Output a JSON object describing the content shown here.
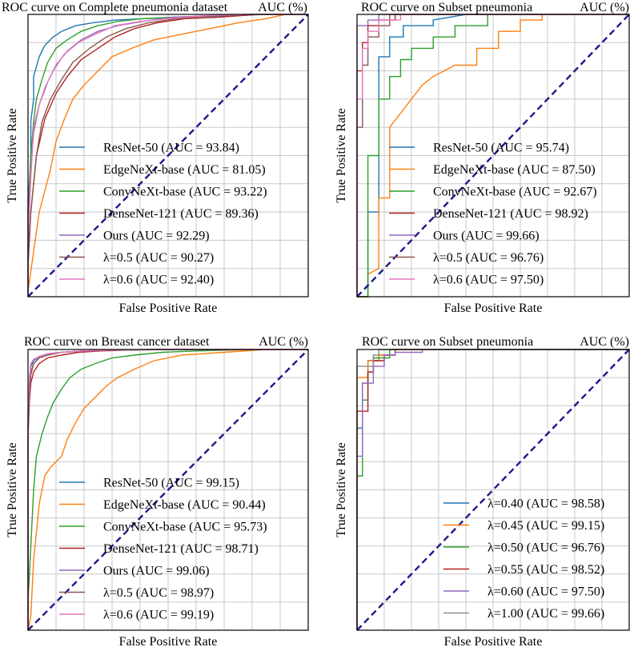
{
  "colors": {
    "blue": "#1f77b4",
    "orange": "#ff7f0e",
    "green": "#2ca02c",
    "red": "#b22222",
    "purple": "#9467bd",
    "brown": "#8c564b",
    "pink": "#e377c2",
    "gray": "#8c8c8c",
    "diag": "#1a1a8c"
  },
  "chart_data": [
    {
      "type": "line",
      "title": "ROC curve on Complete pneumonia dataset",
      "title_right": "AUC (%)",
      "xlabel": "False Positive Rate",
      "ylabel": "True Positive Rate",
      "xlim": [
        0,
        1
      ],
      "ylim": [
        0,
        1
      ],
      "grid": true,
      "diagonal": true,
      "series": [
        {
          "name": "ResNet-50 (AUC = 93.84)",
          "color": "blue",
          "x": [
            0,
            0,
            0.01,
            0.01,
            0.02,
            0.02,
            0.04,
            0.06,
            0.09,
            0.12,
            0.17,
            0.23,
            0.31,
            0.42,
            0.55,
            0.7,
            0.85,
            1
          ],
          "y": [
            0,
            0.35,
            0.45,
            0.62,
            0.7,
            0.78,
            0.85,
            0.89,
            0.92,
            0.94,
            0.96,
            0.97,
            0.98,
            0.985,
            0.99,
            0.995,
            1,
            1
          ]
        },
        {
          "name": "EdgeNeXt-base (AUC = 81.05)",
          "color": "orange",
          "x": [
            0,
            0,
            0.04,
            0.08,
            0.1,
            0.13,
            0.16,
            0.2,
            0.25,
            0.3,
            0.37,
            0.45,
            0.55,
            0.65,
            0.75,
            0.85,
            0.92,
            1
          ],
          "y": [
            0,
            0.02,
            0.3,
            0.45,
            0.55,
            0.63,
            0.7,
            0.75,
            0.8,
            0.85,
            0.88,
            0.91,
            0.93,
            0.95,
            0.97,
            0.985,
            1,
            1
          ]
        },
        {
          "name": "ConvNeXt-base (AUC = 93.22)",
          "color": "green",
          "x": [
            0,
            0,
            0.01,
            0.02,
            0.03,
            0.05,
            0.07,
            0.1,
            0.14,
            0.19,
            0.25,
            0.32,
            0.41,
            0.52,
            0.65,
            0.8,
            1
          ],
          "y": [
            0,
            0.3,
            0.5,
            0.62,
            0.7,
            0.77,
            0.83,
            0.88,
            0.91,
            0.94,
            0.96,
            0.975,
            0.985,
            0.99,
            0.995,
            1,
            1
          ]
        },
        {
          "name": "DenseNet-121 (AUC = 89.36)",
          "color": "red",
          "x": [
            0,
            0,
            0.01,
            0.03,
            0.06,
            0.1,
            0.14,
            0.19,
            0.25,
            0.31,
            0.38,
            0.46,
            0.56,
            0.68,
            0.82,
            1
          ],
          "y": [
            0,
            0.15,
            0.3,
            0.5,
            0.63,
            0.72,
            0.78,
            0.84,
            0.88,
            0.92,
            0.95,
            0.97,
            0.985,
            0.99,
            1,
            1
          ]
        },
        {
          "name": "Ours (AUC = 92.29)",
          "color": "purple",
          "x": [
            0,
            0,
            0.01,
            0.02,
            0.04,
            0.07,
            0.1,
            0.14,
            0.19,
            0.25,
            0.32,
            0.41,
            0.52,
            0.65,
            0.8,
            1
          ],
          "y": [
            0,
            0.25,
            0.45,
            0.58,
            0.68,
            0.76,
            0.82,
            0.87,
            0.91,
            0.94,
            0.96,
            0.975,
            0.99,
            0.995,
            1,
            1
          ]
        },
        {
          "name": "λ=0.5 (AUC = 90.27)",
          "color": "brown",
          "x": [
            0,
            0,
            0.01,
            0.03,
            0.05,
            0.08,
            0.12,
            0.16,
            0.22,
            0.28,
            0.35,
            0.43,
            0.53,
            0.65,
            0.8,
            1
          ],
          "y": [
            0,
            0.1,
            0.3,
            0.5,
            0.62,
            0.7,
            0.77,
            0.83,
            0.88,
            0.92,
            0.95,
            0.97,
            0.985,
            0.995,
            1,
            1
          ]
        },
        {
          "name": "λ=0.6 (AUC = 92.40)",
          "color": "pink",
          "x": [
            0,
            0,
            0.01,
            0.02,
            0.04,
            0.06,
            0.09,
            0.13,
            0.18,
            0.24,
            0.31,
            0.4,
            0.5,
            0.62,
            0.78,
            1
          ],
          "y": [
            0,
            0.2,
            0.42,
            0.6,
            0.68,
            0.74,
            0.8,
            0.86,
            0.9,
            0.93,
            0.96,
            0.975,
            0.985,
            0.995,
            1,
            1
          ]
        }
      ]
    },
    {
      "type": "line",
      "title": "ROC curve on Subset pneumonia",
      "title_right": "AUC (%)",
      "xlabel": "False Positive Rate",
      "ylabel": "True Positive Rate",
      "xlim": [
        0,
        1
      ],
      "ylim": [
        0,
        1
      ],
      "grid": true,
      "diagonal": true,
      "series": [
        {
          "name": "ResNet-50 (AUC = 95.74)",
          "color": "blue",
          "x": [
            0,
            0.04,
            0.04,
            0.08,
            0.08,
            0.12,
            0.12,
            0.17,
            0.17,
            0.28,
            0.28,
            0.4,
            0.55,
            1
          ],
          "y": [
            0,
            0,
            0.3,
            0.3,
            0.85,
            0.85,
            0.92,
            0.92,
            0.96,
            0.96,
            0.98,
            1,
            1,
            1
          ]
        },
        {
          "name": "EdgeNeXt-base (AUC = 87.50)",
          "color": "orange",
          "x": [
            0,
            0.04,
            0.04,
            0.08,
            0.08,
            0.12,
            0.12,
            0.16,
            0.2,
            0.24,
            0.28,
            0.32,
            0.36,
            0.44,
            0.44,
            0.52,
            0.52,
            0.6,
            0.6,
            0.68,
            0.68,
            0.76,
            0.76,
            1
          ],
          "y": [
            0,
            0,
            0.08,
            0.1,
            0.35,
            0.35,
            0.6,
            0.65,
            0.7,
            0.75,
            0.78,
            0.8,
            0.82,
            0.82,
            0.88,
            0.88,
            0.94,
            0.94,
            0.98,
            0.98,
            1,
            1,
            1,
            1
          ]
        },
        {
          "name": "ConvNeXt-base (AUC = 92.67)",
          "color": "green",
          "x": [
            0,
            0.04,
            0.04,
            0.08,
            0.08,
            0.12,
            0.12,
            0.16,
            0.16,
            0.2,
            0.2,
            0.28,
            0.28,
            0.36,
            0.36,
            0.48,
            0.48,
            0.6,
            1
          ],
          "y": [
            0,
            0,
            0.5,
            0.5,
            0.7,
            0.7,
            0.78,
            0.78,
            0.84,
            0.84,
            0.88,
            0.88,
            0.92,
            0.92,
            0.96,
            0.96,
            1,
            1,
            1
          ]
        },
        {
          "name": "DenseNet-121 (AUC = 98.92)",
          "color": "red",
          "x": [
            0,
            0,
            0.02,
            0.02,
            0.04,
            0.04,
            0.08,
            0.08,
            0.14,
            0.14,
            1
          ],
          "y": [
            0,
            0.8,
            0.8,
            0.9,
            0.9,
            0.96,
            0.96,
            0.98,
            0.98,
            1,
            1
          ]
        },
        {
          "name": "Ours (AUC = 99.66)",
          "color": "purple",
          "x": [
            0,
            0,
            0.04,
            0.04,
            0.08,
            0.08,
            1
          ],
          "y": [
            0,
            0.96,
            0.96,
            0.98,
            0.98,
            1,
            1
          ]
        },
        {
          "name": "λ=0.5 (AUC = 96.76)",
          "color": "brown",
          "x": [
            0,
            0,
            0.02,
            0.02,
            0.04,
            0.04,
            0.08,
            0.08,
            0.12,
            0.12,
            1
          ],
          "y": [
            0,
            0.6,
            0.6,
            0.82,
            0.82,
            0.92,
            0.92,
            0.96,
            0.96,
            1,
            1
          ]
        },
        {
          "name": "λ=0.6 (AUC = 97.50)",
          "color": "pink",
          "x": [
            0,
            0,
            0.02,
            0.02,
            0.04,
            0.04,
            0.08,
            0.08,
            0.16,
            0.16,
            1
          ],
          "y": [
            0,
            0.7,
            0.7,
            0.88,
            0.88,
            0.94,
            0.94,
            0.98,
            0.98,
            1,
            1
          ]
        }
      ]
    },
    {
      "type": "line",
      "title": "ROC curve on Breast cancer dataset",
      "title_right": "AUC (%)",
      "xlabel": "False Positive Rate",
      "ylabel": "True Positive Rate",
      "xlim": [
        0,
        1
      ],
      "ylim": [
        0,
        1
      ],
      "grid": true,
      "diagonal": true,
      "series": [
        {
          "name": "ResNet-50 (AUC = 99.15)",
          "color": "blue",
          "x": [
            0,
            0,
            0.005,
            0.01,
            0.02,
            0.04,
            0.07,
            0.12,
            0.2,
            0.32,
            0.5,
            1
          ],
          "y": [
            0,
            0.75,
            0.88,
            0.94,
            0.96,
            0.975,
            0.985,
            0.99,
            0.995,
            0.998,
            1,
            1
          ]
        },
        {
          "name": "EdgeNeXt-base (AUC = 90.44)",
          "color": "orange",
          "x": [
            0,
            0.01,
            0.02,
            0.04,
            0.06,
            0.08,
            0.1,
            0.12,
            0.14,
            0.17,
            0.2,
            0.24,
            0.28,
            0.32,
            0.38,
            0.45,
            0.55,
            0.7,
            0.85,
            1
          ],
          "y": [
            0,
            0.05,
            0.25,
            0.45,
            0.55,
            0.58,
            0.6,
            0.62,
            0.68,
            0.74,
            0.79,
            0.83,
            0.87,
            0.9,
            0.93,
            0.96,
            0.98,
            0.99,
            1,
            1
          ]
        },
        {
          "name": "ConvNeXt-base (AUC = 95.73)",
          "color": "green",
          "x": [
            0,
            0,
            0.01,
            0.02,
            0.03,
            0.05,
            0.07,
            0.09,
            0.12,
            0.15,
            0.19,
            0.24,
            0.3,
            0.38,
            0.48,
            0.6,
            0.8,
            1
          ],
          "y": [
            0,
            0.1,
            0.3,
            0.5,
            0.62,
            0.7,
            0.76,
            0.81,
            0.86,
            0.9,
            0.93,
            0.95,
            0.97,
            0.98,
            0.99,
            0.995,
            1,
            1
          ]
        },
        {
          "name": "DenseNet-121 (AUC = 98.71)",
          "color": "red",
          "x": [
            0,
            0,
            0.005,
            0.01,
            0.02,
            0.04,
            0.07,
            0.12,
            0.18,
            0.26,
            0.36,
            0.5,
            1
          ],
          "y": [
            0,
            0.7,
            0.82,
            0.88,
            0.92,
            0.95,
            0.97,
            0.98,
            0.99,
            0.995,
            0.998,
            1,
            1
          ]
        },
        {
          "name": "Ours (AUC = 99.06)",
          "color": "purple",
          "x": [
            0,
            0,
            0.005,
            0.01,
            0.02,
            0.04,
            0.07,
            0.12,
            0.2,
            0.3,
            0.45,
            1
          ],
          "y": [
            0,
            0.72,
            0.86,
            0.92,
            0.95,
            0.97,
            0.98,
            0.99,
            0.995,
            0.998,
            1,
            1
          ]
        },
        {
          "name": "λ=0.5 (AUC = 98.97)",
          "color": "brown",
          "x": [
            0,
            0,
            0.005,
            0.01,
            0.02,
            0.04,
            0.07,
            0.12,
            0.2,
            0.3,
            0.45,
            1
          ],
          "y": [
            0,
            0.68,
            0.84,
            0.91,
            0.95,
            0.97,
            0.98,
            0.99,
            0.995,
            0.998,
            1,
            1
          ]
        },
        {
          "name": "λ=0.6 (AUC = 99.19)",
          "color": "pink",
          "x": [
            0,
            0,
            0.005,
            0.01,
            0.02,
            0.04,
            0.07,
            0.12,
            0.2,
            0.3,
            0.45,
            1
          ],
          "y": [
            0,
            0.78,
            0.9,
            0.95,
            0.965,
            0.975,
            0.985,
            0.99,
            0.995,
            0.998,
            1,
            1
          ]
        }
      ]
    },
    {
      "type": "line",
      "title": "ROC curve on Subset pneumonia",
      "title_right": "AUC (%)",
      "xlabel": "False Positive Rate",
      "ylabel": "True Positive Rate",
      "xlim": [
        0,
        1
      ],
      "ylim": [
        0,
        1
      ],
      "grid": true,
      "diagonal": true,
      "series": [
        {
          "name": "λ=0.40 (AUC = 98.58)",
          "color": "blue",
          "x": [
            0,
            0,
            0.02,
            0.02,
            0.04,
            0.04,
            0.08,
            0.08,
            0.12,
            0.12,
            1
          ],
          "y": [
            0,
            0.72,
            0.72,
            0.88,
            0.88,
            0.96,
            0.96,
            0.98,
            0.98,
            1,
            1
          ]
        },
        {
          "name": "λ=0.45 (AUC = 99.15)",
          "color": "orange",
          "x": [
            0,
            0,
            0.04,
            0.04,
            0.08,
            0.08,
            0.12,
            0.12,
            1
          ],
          "y": [
            0,
            0.9,
            0.9,
            0.96,
            0.96,
            0.98,
            0.98,
            1,
            1
          ]
        },
        {
          "name": "λ=0.50 (AUC = 96.76)",
          "color": "green",
          "x": [
            0,
            0,
            0.02,
            0.02,
            0.04,
            0.04,
            0.06,
            0.06,
            0.12,
            0.12,
            1
          ],
          "y": [
            0,
            0.55,
            0.55,
            0.82,
            0.82,
            0.92,
            0.92,
            0.97,
            0.97,
            1,
            1
          ]
        },
        {
          "name": "λ=0.55 (AUC = 98.52)",
          "color": "red",
          "x": [
            0,
            0,
            0.04,
            0.04,
            0.06,
            0.06,
            0.1,
            0.1,
            0.14,
            0.14,
            1
          ],
          "y": [
            0,
            0.78,
            0.78,
            0.92,
            0.92,
            0.96,
            0.96,
            0.98,
            0.98,
            1,
            1
          ]
        },
        {
          "name": "λ=0.60 (AUC = 97.50)",
          "color": "purple",
          "x": [
            0,
            0,
            0.02,
            0.02,
            0.06,
            0.06,
            0.1,
            0.1,
            0.14,
            0.14,
            0.24,
            0.24,
            1
          ],
          "y": [
            0,
            0.62,
            0.62,
            0.88,
            0.88,
            0.94,
            0.94,
            0.98,
            0.98,
            0.99,
            0.99,
            1,
            1
          ]
        },
        {
          "name": "λ=1.00 (AUC = 99.66)",
          "color": "gray",
          "x": [
            0,
            0,
            0.06,
            0.06,
            0.08,
            0.08,
            1
          ],
          "y": [
            0,
            0.94,
            0.94,
            0.98,
            0.98,
            1,
            1
          ]
        }
      ]
    }
  ]
}
